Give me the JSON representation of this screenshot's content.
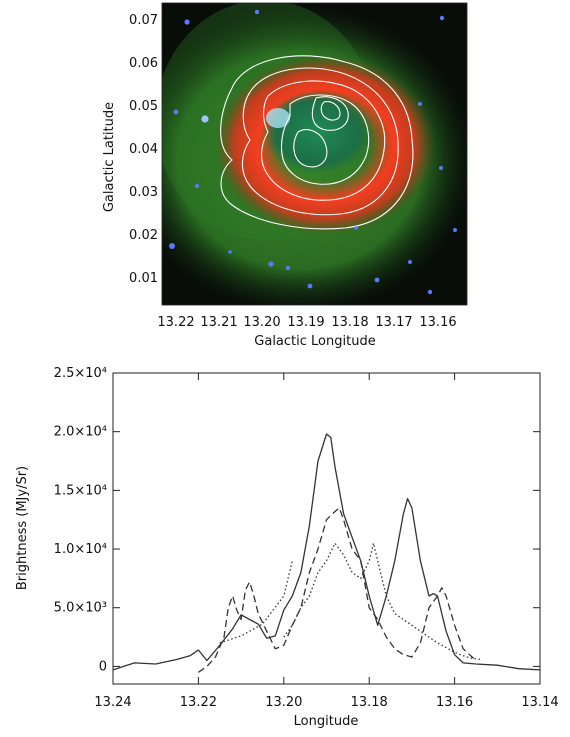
{
  "chart_data": [
    {
      "type": "image",
      "xlabel": "Galactic Longitude",
      "ylabel": "Galactic Latitude",
      "xticks": [
        "13.22",
        "13.21",
        "13.20",
        "13.19",
        "13.18",
        "13.17",
        "13.16"
      ],
      "yticks": [
        "0.07",
        "0.06",
        "0.05",
        "0.04",
        "0.03",
        "0.02",
        "0.01"
      ],
      "colors": {
        "outer": "#1f6b24",
        "shell": "#e8321c",
        "cavity": "#1e7a4a",
        "background": "#080d08",
        "contour": "#ffffff"
      }
    },
    {
      "type": "line",
      "xlabel": "Longitude",
      "ylabel": "Brightness (MJy/Sr)",
      "xlim": [
        13.24,
        13.14
      ],
      "ylim": [
        -1500,
        25000
      ],
      "xticks": [
        "13.24",
        "13.22",
        "13.20",
        "13.18",
        "13.16",
        "13.14"
      ],
      "xtick_values": [
        13.24,
        13.22,
        13.2,
        13.18,
        13.16,
        13.14
      ],
      "yticks": [
        "0",
        "5.0×10³",
        "1.0×10⁴",
        "1.5×10⁴",
        "2.0×10⁴",
        "2.5×10⁴"
      ],
      "ytick_values": [
        0,
        5000,
        10000,
        15000,
        20000,
        25000
      ],
      "series": [
        {
          "style": "solid",
          "x": [
            13.24,
            13.235,
            13.23,
            13.225,
            13.222,
            13.22,
            13.218,
            13.215,
            13.212,
            13.21,
            13.208,
            13.206,
            13.204,
            13.202,
            13.2,
            13.198,
            13.196,
            13.194,
            13.192,
            13.19,
            13.189,
            13.188,
            13.186,
            13.184,
            13.182,
            13.18,
            13.178,
            13.176,
            13.174,
            13.172,
            13.171,
            13.17,
            13.168,
            13.166,
            13.165,
            13.164,
            13.162,
            13.16,
            13.158,
            13.155,
            13.15,
            13.145,
            13.14
          ],
          "y": [
            -300,
            300,
            200,
            600,
            900,
            1400,
            500,
            1800,
            3200,
            4400,
            4000,
            3600,
            2400,
            2600,
            4800,
            6000,
            8000,
            12000,
            17500,
            19800,
            19500,
            17000,
            13000,
            11000,
            9000,
            6000,
            3500,
            6000,
            9000,
            13000,
            14300,
            13500,
            9000,
            6000,
            6200,
            6000,
            3000,
            1000,
            300,
            200,
            100,
            -200,
            -300
          ]
        },
        {
          "style": "dashed",
          "x": [
            13.22,
            13.218,
            13.216,
            13.214,
            13.213,
            13.212,
            13.211,
            13.21,
            13.209,
            13.208,
            13.207,
            13.206,
            13.204,
            13.202,
            13.2,
            13.198,
            13.196,
            13.194,
            13.192,
            13.19,
            13.188,
            13.187,
            13.186,
            13.184,
            13.182,
            13.18,
            13.178,
            13.176,
            13.174,
            13.172,
            13.17,
            13.168,
            13.166,
            13.164,
            13.163,
            13.162,
            13.16,
            13.158,
            13.155
          ],
          "y": [
            -500,
            0,
            800,
            2500,
            5000,
            6000,
            4800,
            4000,
            6500,
            7200,
            6000,
            4500,
            3000,
            1500,
            1800,
            3500,
            5000,
            8000,
            10000,
            12500,
            13200,
            13500,
            12500,
            10000,
            9000,
            5000,
            4000,
            2500,
            1500,
            1000,
            800,
            2000,
            5000,
            6000,
            6700,
            6000,
            3500,
            1500,
            500
          ]
        },
        {
          "style": "dotted",
          "x": [
            13.2,
            13.198,
            13.196,
            13.194,
            13.192,
            13.19,
            13.188,
            13.186,
            13.184,
            13.182,
            13.18,
            13.179,
            13.178,
            13.176,
            13.174,
            13.172,
            13.17,
            13.168,
            13.166,
            13.164,
            13.162,
            13.16,
            13.158,
            13.156,
            13.154
          ],
          "y": [
            2500,
            3500,
            5000,
            6000,
            8000,
            9000,
            10500,
            9500,
            8000,
            7500,
            9000,
            10500,
            9000,
            6000,
            4500,
            4000,
            3500,
            3000,
            2500,
            2000,
            1600,
            1200,
            900,
            700,
            600
          ]
        },
        {
          "style": "dotted",
          "x": [
            13.215,
            13.21,
            13.205,
            13.2,
            13.198
          ],
          "y": [
            2000,
            2600,
            3600,
            6000,
            9000
          ]
        }
      ]
    }
  ]
}
